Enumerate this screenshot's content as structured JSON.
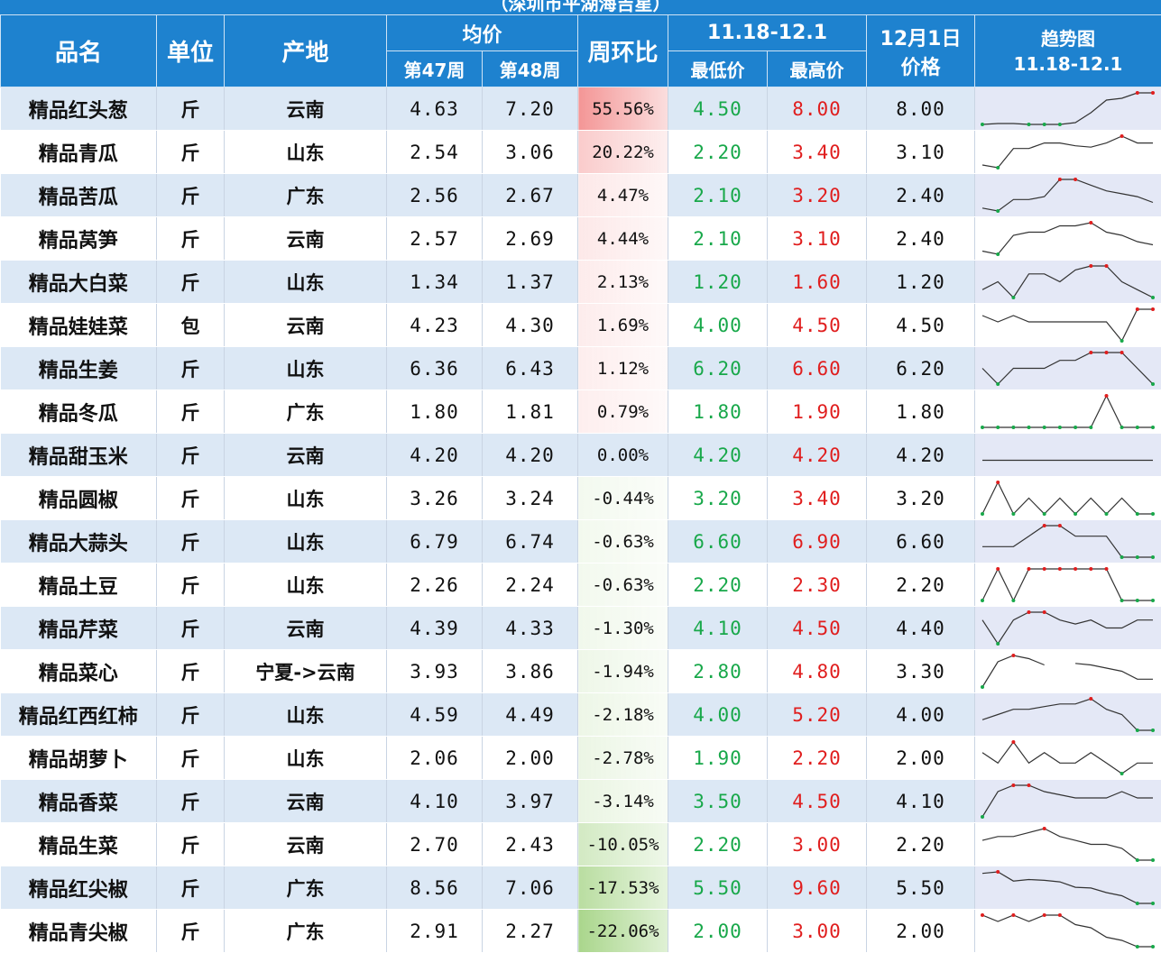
{
  "title": "（深圳市平湖海吉星）",
  "header": {
    "name": "品名",
    "unit": "单位",
    "origin": "产地",
    "avg": "均价",
    "week47": "第47周",
    "week48": "第48周",
    "wow": "周环比",
    "range": "11.18-12.1",
    "min": "最低价",
    "max": "最高价",
    "dec1_line1": "12月1日",
    "dec1_line2": "价格",
    "trend_line1": "趋势图",
    "trend_line2": "11.18-12.1"
  },
  "colors": {
    "header_bg": "#1e82cf",
    "low": "#18a84a",
    "high": "#e01e1e",
    "pos_change": "#f4a3a3",
    "neg_change": "#b6d99a"
  },
  "rows": [
    {
      "name": "精品红头葱",
      "unit": "斤",
      "origin": "云南",
      "w47": "4.63",
      "w48": "7.20",
      "wow": "55.56%",
      "wow_value": 55.56,
      "min": "4.50",
      "max": "8.00",
      "dec1": "8.00",
      "trend": [
        4.5,
        4.6,
        4.6,
        4.5,
        4.5,
        4.5,
        4.7,
        5.8,
        7.2,
        7.4,
        8.0,
        8.0
      ]
    },
    {
      "name": "精品青瓜",
      "unit": "斤",
      "origin": "山东",
      "w47": "2.54",
      "w48": "3.06",
      "wow": "20.22%",
      "wow_value": 20.22,
      "min": "2.20",
      "max": "3.40",
      "dec1": "3.10",
      "trend": [
        2.3,
        2.2,
        2.9,
        2.9,
        3.1,
        3.1,
        3.0,
        2.95,
        3.1,
        3.35,
        3.1,
        3.1
      ]
    },
    {
      "name": "精品苦瓜",
      "unit": "斤",
      "origin": "广东",
      "w47": "2.56",
      "w48": "2.67",
      "wow": "4.47%",
      "wow_value": 4.47,
      "min": "2.10",
      "max": "3.20",
      "dec1": "2.40",
      "trend": [
        2.2,
        2.1,
        2.5,
        2.5,
        2.6,
        3.2,
        3.2,
        3.0,
        2.8,
        2.7,
        2.6,
        2.4
      ]
    },
    {
      "name": "精品莴笋",
      "unit": "斤",
      "origin": "云南",
      "w47": "2.57",
      "w48": "2.69",
      "wow": "4.44%",
      "wow_value": 4.44,
      "min": "2.10",
      "max": "3.10",
      "dec1": "2.40",
      "trend": [
        2.2,
        2.1,
        2.7,
        2.8,
        2.8,
        3.0,
        3.0,
        3.1,
        2.8,
        2.7,
        2.5,
        2.4
      ]
    },
    {
      "name": "精品大白菜",
      "unit": "斤",
      "origin": "山东",
      "w47": "1.34",
      "w48": "1.37",
      "wow": "2.13%",
      "wow_value": 2.13,
      "min": "1.20",
      "max": "1.60",
      "dec1": "1.20",
      "trend": [
        1.3,
        1.4,
        1.2,
        1.5,
        1.5,
        1.4,
        1.55,
        1.6,
        1.6,
        1.4,
        1.3,
        1.2
      ]
    },
    {
      "name": "精品娃娃菜",
      "unit": "包",
      "origin": "云南",
      "w47": "4.23",
      "w48": "4.30",
      "wow": "1.69%",
      "wow_value": 1.69,
      "min": "4.00",
      "max": "4.50",
      "dec1": "4.50",
      "trend": [
        4.4,
        4.3,
        4.4,
        4.3,
        4.3,
        4.3,
        4.3,
        4.3,
        4.3,
        4.0,
        4.5,
        4.5
      ]
    },
    {
      "name": "精品生姜",
      "unit": "斤",
      "origin": "山东",
      "w47": "6.36",
      "w48": "6.43",
      "wow": "1.12%",
      "wow_value": 1.12,
      "min": "6.20",
      "max": "6.60",
      "dec1": "6.20",
      "trend": [
        6.4,
        6.2,
        6.4,
        6.4,
        6.4,
        6.5,
        6.5,
        6.6,
        6.6,
        6.6,
        6.4,
        6.2
      ]
    },
    {
      "name": "精品冬瓜",
      "unit": "斤",
      "origin": "广东",
      "w47": "1.80",
      "w48": "1.81",
      "wow": "0.79%",
      "wow_value": 0.79,
      "min": "1.80",
      "max": "1.90",
      "dec1": "1.80",
      "trend": [
        1.8,
        1.8,
        1.8,
        1.8,
        1.8,
        1.8,
        1.8,
        1.8,
        1.9,
        1.8,
        1.8,
        1.8
      ]
    },
    {
      "name": "精品甜玉米",
      "unit": "斤",
      "origin": "云南",
      "w47": "4.20",
      "w48": "4.20",
      "wow": "0.00%",
      "wow_value": 0.0,
      "min": "4.20",
      "max": "4.20",
      "dec1": "4.20",
      "trend": [
        4.2,
        4.2,
        4.2,
        4.2,
        4.2,
        4.2,
        4.2,
        4.2,
        4.2,
        4.2,
        4.2,
        4.2
      ]
    },
    {
      "name": "精品圆椒",
      "unit": "斤",
      "origin": "山东",
      "w47": "3.26",
      "w48": "3.24",
      "wow": "-0.44%",
      "wow_value": -0.44,
      "min": "3.20",
      "max": "3.40",
      "dec1": "3.20",
      "trend": [
        3.2,
        3.4,
        3.2,
        3.3,
        3.2,
        3.3,
        3.2,
        3.3,
        3.2,
        3.3,
        3.2,
        3.2
      ]
    },
    {
      "name": "精品大蒜头",
      "unit": "斤",
      "origin": "山东",
      "w47": "6.79",
      "w48": "6.74",
      "wow": "-0.63%",
      "wow_value": -0.63,
      "min": "6.60",
      "max": "6.90",
      "dec1": "6.60",
      "trend": [
        6.7,
        6.7,
        6.7,
        6.8,
        6.9,
        6.9,
        6.8,
        6.8,
        6.8,
        6.6,
        6.6,
        6.6
      ]
    },
    {
      "name": "精品土豆",
      "unit": "斤",
      "origin": "山东",
      "w47": "2.26",
      "w48": "2.24",
      "wow": "-0.63%",
      "wow_value": -0.63,
      "min": "2.20",
      "max": "2.30",
      "dec1": "2.20",
      "trend": [
        2.2,
        2.3,
        2.2,
        2.3,
        2.3,
        2.3,
        2.3,
        2.3,
        2.3,
        2.2,
        2.2,
        2.2
      ]
    },
    {
      "name": "精品芹菜",
      "unit": "斤",
      "origin": "云南",
      "w47": "4.39",
      "w48": "4.33",
      "wow": "-1.30%",
      "wow_value": -1.3,
      "min": "4.10",
      "max": "4.50",
      "dec1": "4.40",
      "trend": [
        4.4,
        4.1,
        4.4,
        4.5,
        4.5,
        4.4,
        4.35,
        4.4,
        4.3,
        4.3,
        4.4,
        4.4
      ]
    },
    {
      "name": "精品菜心",
      "unit": "斤",
      "origin": "宁夏->云南",
      "w47": "3.93",
      "w48": "3.86",
      "wow": "-1.94%",
      "wow_value": -1.94,
      "min": "2.80",
      "max": "4.80",
      "dec1": "3.30",
      "trend": [
        2.8,
        4.4,
        4.8,
        4.6,
        4.2,
        null,
        4.3,
        4.2,
        4.0,
        3.8,
        3.3,
        3.3
      ]
    },
    {
      "name": "精品红西红柿",
      "unit": "斤",
      "origin": "山东",
      "w47": "4.59",
      "w48": "4.49",
      "wow": "-2.18%",
      "wow_value": -2.18,
      "min": "4.00",
      "max": "5.20",
      "dec1": "4.00",
      "trend": [
        4.4,
        4.6,
        4.8,
        4.8,
        4.9,
        5.0,
        5.0,
        5.2,
        4.8,
        4.6,
        4.0,
        4.0
      ]
    },
    {
      "name": "精品胡萝卜",
      "unit": "斤",
      "origin": "山东",
      "w47": "2.06",
      "w48": "2.00",
      "wow": "-2.78%",
      "wow_value": -2.78,
      "min": "1.90",
      "max": "2.20",
      "dec1": "2.00",
      "trend": [
        2.1,
        2.0,
        2.2,
        2.0,
        2.1,
        2.0,
        2.0,
        2.1,
        2.0,
        1.9,
        2.0,
        2.0
      ]
    },
    {
      "name": "精品香菜",
      "unit": "斤",
      "origin": "云南",
      "w47": "4.10",
      "w48": "3.97",
      "wow": "-3.14%",
      "wow_value": -3.14,
      "min": "3.50",
      "max": "4.50",
      "dec1": "4.10",
      "trend": [
        3.5,
        4.3,
        4.5,
        4.5,
        4.3,
        4.2,
        4.1,
        4.1,
        4.1,
        4.3,
        4.1,
        4.1
      ]
    },
    {
      "name": "精品生菜",
      "unit": "斤",
      "origin": "云南",
      "w47": "2.70",
      "w48": "2.43",
      "wow": "-10.05%",
      "wow_value": -10.05,
      "min": "2.20",
      "max": "3.00",
      "dec1": "2.20",
      "trend": [
        2.7,
        2.8,
        2.8,
        2.9,
        3.0,
        2.8,
        2.7,
        2.6,
        2.6,
        2.5,
        2.2,
        2.2
      ]
    },
    {
      "name": "精品红尖椒",
      "unit": "斤",
      "origin": "广东",
      "w47": "8.56",
      "w48": "7.06",
      "wow": "-17.53%",
      "wow_value": -17.53,
      "min": "5.50",
      "max": "9.60",
      "dec1": "5.50",
      "trend": [
        9.4,
        9.6,
        8.4,
        8.6,
        8.5,
        8.3,
        7.6,
        7.5,
        6.9,
        6.5,
        5.5,
        5.5
      ]
    },
    {
      "name": "精品青尖椒",
      "unit": "斤",
      "origin": "广东",
      "w47": "2.91",
      "w48": "2.27",
      "wow": "-22.06%",
      "wow_value": -22.06,
      "min": "2.00",
      "max": "3.00",
      "dec1": "2.00",
      "trend": [
        3.0,
        2.8,
        3.0,
        2.8,
        3.0,
        3.0,
        2.7,
        2.6,
        2.3,
        2.2,
        2.0,
        2.0
      ]
    }
  ]
}
